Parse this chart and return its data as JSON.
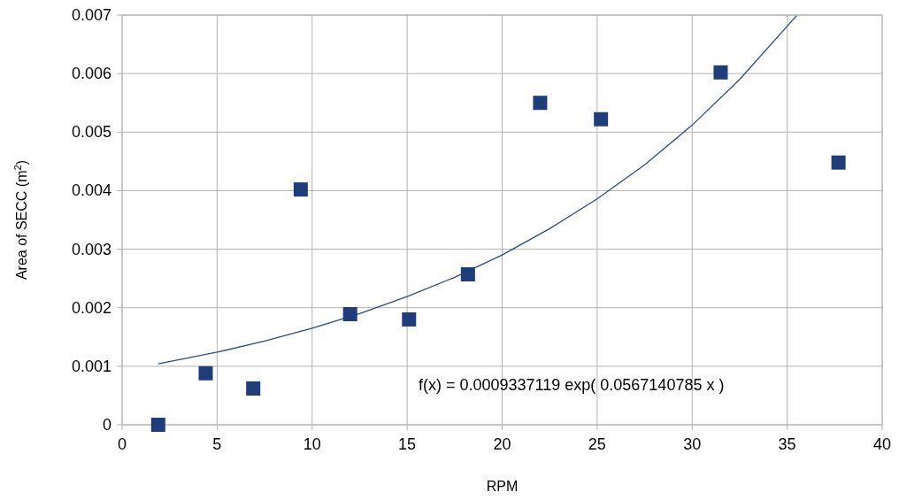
{
  "chart_data": {
    "type": "scatter",
    "xlabel": "RPM",
    "ylabel": "Area of SECC (m$^{2}$)",
    "xlim": [
      0,
      40
    ],
    "xticks": [
      0,
      5,
      10,
      15,
      20,
      25,
      30,
      35,
      40
    ],
    "ylim": [
      0,
      0.007
    ],
    "yticks": [
      0,
      0.001,
      0.002,
      0.003,
      0.004,
      0.005,
      0.006,
      0.007
    ],
    "grid": true,
    "series": [
      {
        "marker": "square",
        "color": "#1f3d7a",
        "x": [
          1.9,
          4.4,
          6.9,
          9.4,
          12.0,
          15.1,
          18.2,
          22.0,
          25.2,
          31.5,
          37.7
        ],
        "values": [
          0,
          0.00088,
          0.00062,
          0.00402,
          0.00189,
          0.0018,
          0.00257,
          0.0055,
          0.00522,
          0.00602,
          0.00448
        ]
      },
      {
        "type": "line",
        "marker": "none",
        "color": "#2a4a8a",
        "x": [
          1.9,
          5,
          7.5,
          10,
          12.5,
          15,
          17.5,
          20,
          22.5,
          25,
          27.5,
          30,
          32.5,
          35.5
        ],
        "values": [
          0.00104,
          0.00124,
          0.00143,
          0.00165,
          0.0019,
          0.00219,
          0.00252,
          0.0029,
          0.00335,
          0.00386,
          0.00444,
          0.00512,
          0.0059,
          0.00699
        ]
      }
    ],
    "annotations": [
      "f(x) = 0.0009337119 exp( 0.0567140785 x )"
    ]
  }
}
